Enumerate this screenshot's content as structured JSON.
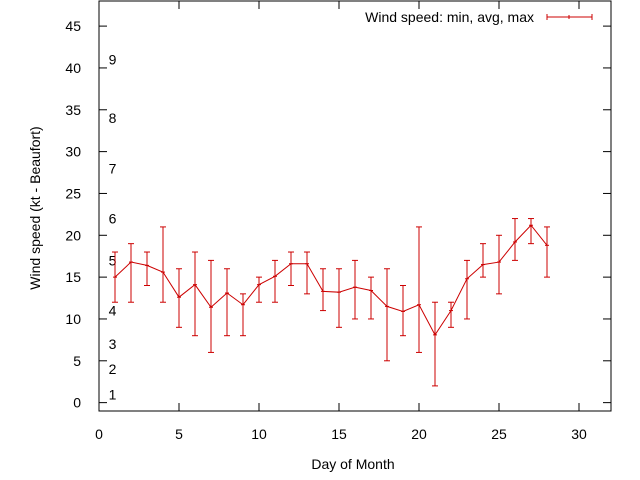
{
  "chart_data": {
    "type": "line",
    "xlabel": "Day of Month",
    "ylabel": "Wind speed (kt - Beaufort)",
    "xlim": [
      0,
      32
    ],
    "ylim": [
      -1,
      48
    ],
    "xticks": [
      0,
      5,
      10,
      15,
      20,
      25,
      30
    ],
    "yticks": [
      0,
      5,
      10,
      15,
      20,
      25,
      30,
      35,
      40,
      45
    ],
    "grid": false,
    "legend_position": "top-right",
    "series": [
      {
        "name": "Wind speed: min, avg, max",
        "color": "#cc0000",
        "x": [
          1,
          2,
          3,
          4,
          5,
          6,
          7,
          8,
          9,
          10,
          11,
          12,
          13,
          14,
          15,
          16,
          17,
          18,
          19,
          20,
          21,
          22,
          23,
          24,
          25,
          26,
          27,
          28
        ],
        "avg": [
          15,
          16.8,
          16.4,
          15.6,
          12.6,
          14.1,
          11.4,
          13.1,
          11.7,
          14.1,
          15.1,
          16.6,
          16.6,
          13.3,
          13.2,
          13.8,
          13.4,
          11.5,
          10.9,
          11.7,
          8.1,
          11,
          14.8,
          16.5,
          16.8,
          19.2,
          21.2,
          18.8
        ],
        "min": [
          12,
          12,
          14,
          12,
          9,
          8,
          6,
          8,
          8,
          12,
          12,
          14,
          13,
          11,
          9,
          10,
          10,
          5,
          8,
          6,
          2,
          9,
          10,
          15,
          13,
          17,
          19,
          15
        ],
        "max": [
          18,
          19,
          18,
          21,
          16,
          18,
          17,
          16,
          13,
          15,
          17,
          18,
          18,
          16,
          16,
          17,
          15,
          16,
          14,
          21,
          12,
          12,
          17,
          19,
          20,
          22,
          22,
          21
        ]
      }
    ],
    "annotations": [
      {
        "text": "1",
        "y": 1
      },
      {
        "text": "2",
        "y": 4
      },
      {
        "text": "3",
        "y": 7
      },
      {
        "text": "4",
        "y": 11
      },
      {
        "text": "5",
        "y": 17
      },
      {
        "text": "6",
        "y": 22
      },
      {
        "text": "7",
        "y": 28
      },
      {
        "text": "8",
        "y": 34
      },
      {
        "text": "9",
        "y": 41
      }
    ]
  }
}
